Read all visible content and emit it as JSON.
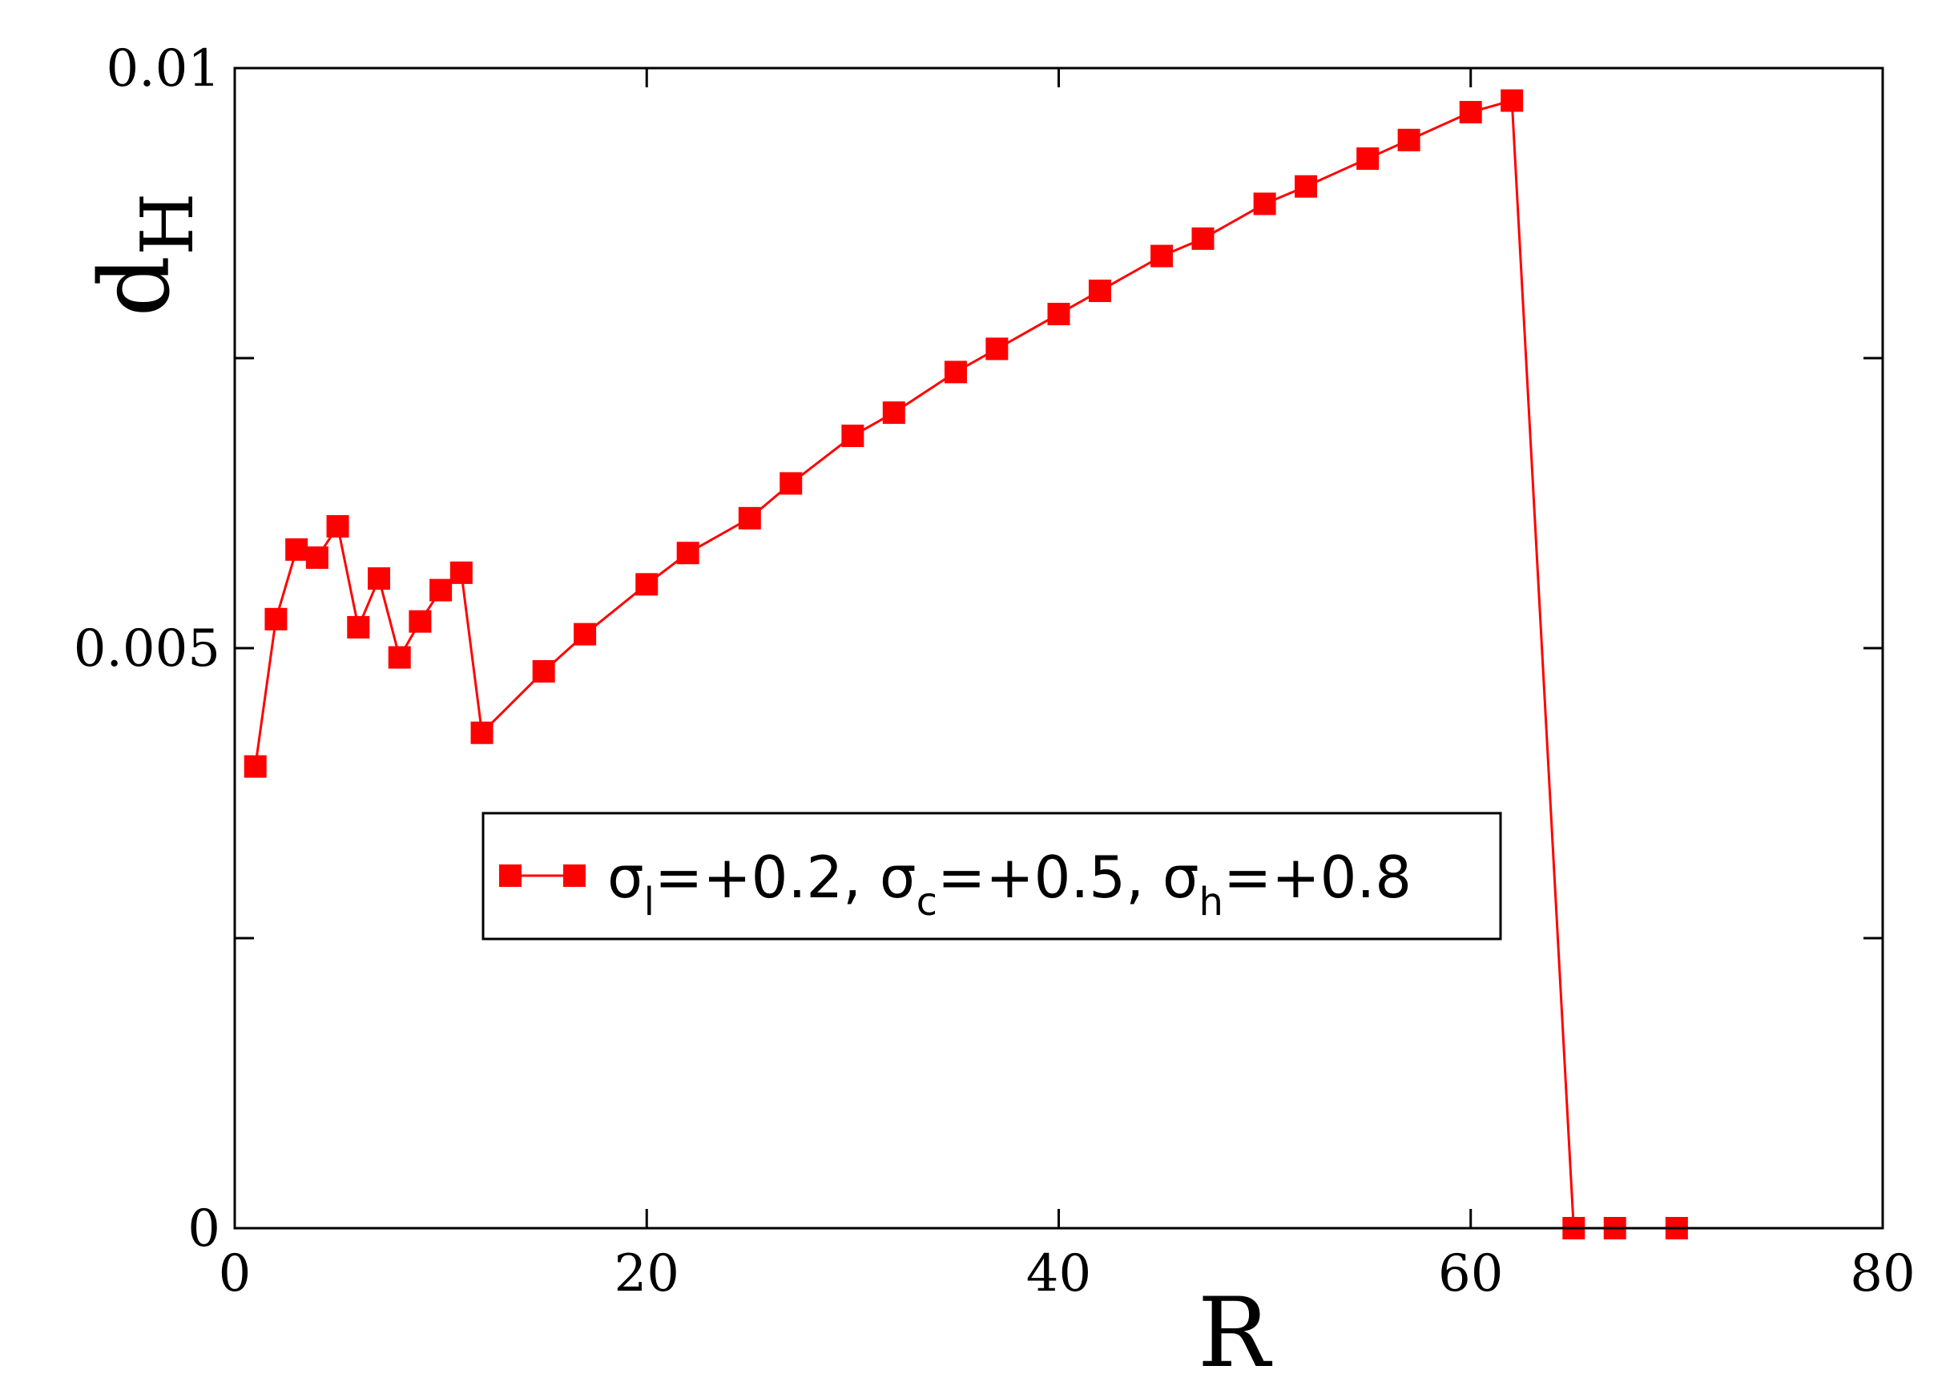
{
  "chart_data": {
    "type": "line",
    "xlabel": "R",
    "ylabel": {
      "main": "d",
      "sub": "H"
    },
    "xlim": [
      0,
      80
    ],
    "ylim": [
      0,
      0.01
    ],
    "x_ticks": [
      0,
      20,
      40,
      60,
      80
    ],
    "x_tick_labels": [
      "0",
      "20",
      "40",
      "60",
      "80"
    ],
    "y_ticks": [
      0,
      0.0025,
      0.005,
      0.0075,
      0.01
    ],
    "y_tick_labels": [
      "0",
      "",
      "0.005",
      "",
      "0.01"
    ],
    "grid": false,
    "legend_position": "center",
    "series": [
      {
        "legend": {
          "parts": [
            {
              "text": "σ",
              "sub": "l",
              "after": "=+0.2, "
            },
            {
              "text": "σ",
              "sub": "c",
              "after": "=+0.5, "
            },
            {
              "text": "σ",
              "sub": "h",
              "after": "=+0.8"
            }
          ]
        },
        "color": "#ff0000",
        "marker": "square",
        "points": [
          [
            1,
            0.00398
          ],
          [
            2,
            0.00525
          ],
          [
            3,
            0.00585
          ],
          [
            4,
            0.00578
          ],
          [
            5,
            0.00605
          ],
          [
            6,
            0.00518
          ],
          [
            7,
            0.0056
          ],
          [
            8,
            0.00492
          ],
          [
            9,
            0.00523
          ],
          [
            10,
            0.0055
          ],
          [
            11,
            0.00565
          ],
          [
            12,
            0.00427
          ],
          [
            15,
            0.0048
          ],
          [
            17,
            0.00512
          ],
          [
            20,
            0.00555
          ],
          [
            22,
            0.00582
          ],
          [
            25,
            0.00612
          ],
          [
            27,
            0.00642
          ],
          [
            30,
            0.00683
          ],
          [
            32,
            0.00703
          ],
          [
            35,
            0.00738
          ],
          [
            37,
            0.00758
          ],
          [
            40,
            0.00788
          ],
          [
            42,
            0.00808
          ],
          [
            45,
            0.00838
          ],
          [
            47,
            0.00853
          ],
          [
            50,
            0.00883
          ],
          [
            52,
            0.00898
          ],
          [
            55,
            0.00922
          ],
          [
            57,
            0.00938
          ],
          [
            60,
            0.00962
          ],
          [
            62,
            0.00972
          ],
          [
            65,
            0.0
          ],
          [
            67,
            0.0
          ],
          [
            70,
            0.0
          ]
        ]
      }
    ]
  }
}
